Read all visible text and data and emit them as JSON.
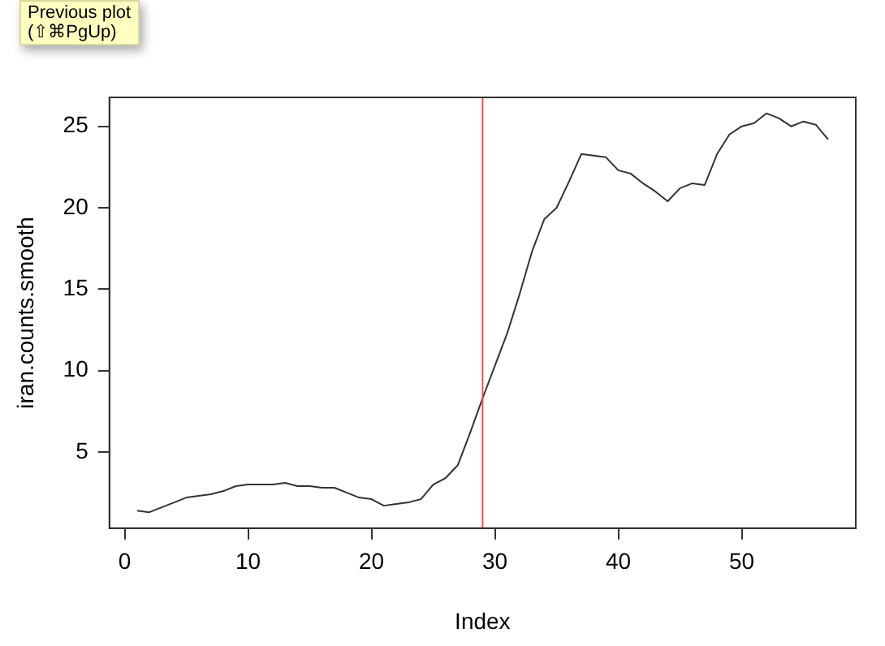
{
  "chart_data": {
    "type": "line",
    "xlabel": "Index",
    "ylabel": "iran.counts.smooth",
    "x": [
      1,
      2,
      3,
      4,
      5,
      6,
      7,
      8,
      9,
      10,
      11,
      12,
      13,
      14,
      15,
      16,
      17,
      18,
      19,
      20,
      21,
      22,
      23,
      24,
      25,
      26,
      27,
      28,
      29,
      30,
      31,
      32,
      33,
      34,
      35,
      36,
      37,
      38,
      39,
      40,
      41,
      42,
      43,
      44,
      45,
      46,
      47,
      48,
      49,
      50,
      51,
      52,
      53,
      54,
      55,
      56,
      57
    ],
    "series": [
      {
        "color": "#333333",
        "values": [
          1.4,
          1.3,
          1.6,
          1.9,
          2.2,
          2.3,
          2.4,
          2.6,
          2.9,
          3.0,
          3.0,
          3.0,
          3.1,
          2.9,
          2.9,
          2.8,
          2.8,
          2.5,
          2.2,
          2.1,
          1.7,
          1.8,
          1.9,
          2.1,
          3.0,
          3.4,
          4.2,
          6.2,
          8.3,
          10.3,
          12.3,
          14.7,
          17.3,
          19.3,
          20.0,
          21.6,
          23.3,
          23.2,
          23.1,
          22.3,
          22.1,
          21.5,
          21.0,
          20.4,
          21.2,
          21.5,
          21.4,
          23.3,
          24.5,
          25.0,
          25.2,
          25.8,
          25.5,
          25.0,
          25.3,
          25.1,
          24.2
        ]
      }
    ],
    "xlim": [
      -1.24,
      59.24
    ],
    "xticks": [
      0,
      10,
      20,
      30,
      40,
      50
    ],
    "ylim": [
      0.32,
      26.78
    ],
    "yticks": [
      5,
      10,
      15,
      20,
      25
    ],
    "ref_lines": [
      {
        "axis": "x",
        "value": 29,
        "color": "#f05050"
      }
    ],
    "annotations": [
      "Previous plot\n(⇧⌘PgUp)"
    ],
    "grid": false,
    "legend": false,
    "marker": "none",
    "line_style": "solid"
  }
}
